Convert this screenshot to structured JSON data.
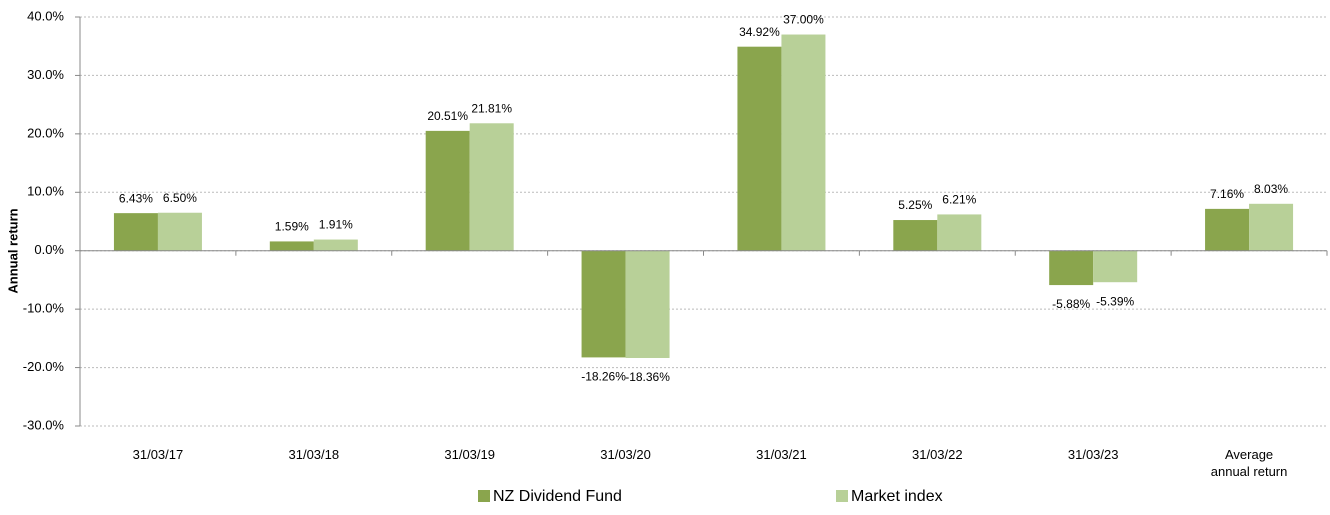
{
  "chart_data": {
    "type": "bar",
    "y_axis_label": "Annual return",
    "categories": [
      "31/03/17",
      "31/03/18",
      "31/03/19",
      "31/03/20",
      "31/03/21",
      "31/03/22",
      "31/03/23",
      "Average annual return"
    ],
    "series": [
      {
        "name": "NZ Dividend Fund",
        "color": "#8aa54d",
        "values": [
          6.43,
          1.59,
          20.51,
          -18.26,
          34.92,
          5.25,
          -5.88,
          7.16
        ],
        "value_labels": [
          "6.43%",
          "1.59%",
          "20.51%",
          "-18.26%",
          "34.92%",
          "5.25%",
          "-5.88%",
          "7.16%"
        ]
      },
      {
        "name": "Market index",
        "color": "#b8d098",
        "values": [
          6.5,
          1.91,
          21.81,
          -18.36,
          37.0,
          6.21,
          -5.39,
          8.03
        ],
        "value_labels": [
          "6.50%",
          "1.91%",
          "21.81%",
          "-18.36%",
          "37.00%",
          "6.21%",
          "-5.39%",
          "8.03%"
        ]
      }
    ],
    "ylim": [
      -30,
      40
    ],
    "yticks": [
      {
        "value": -30,
        "label": "-30.0%"
      },
      {
        "value": -20,
        "label": "-20.0%"
      },
      {
        "value": -10,
        "label": "-10.0%"
      },
      {
        "value": 0,
        "label": "0.0%"
      },
      {
        "value": 10,
        "label": "10.0%"
      },
      {
        "value": 20,
        "label": "20.0%"
      },
      {
        "value": 30,
        "label": "30.0%"
      },
      {
        "value": 40,
        "label": "40.0%"
      }
    ],
    "grid": true
  }
}
